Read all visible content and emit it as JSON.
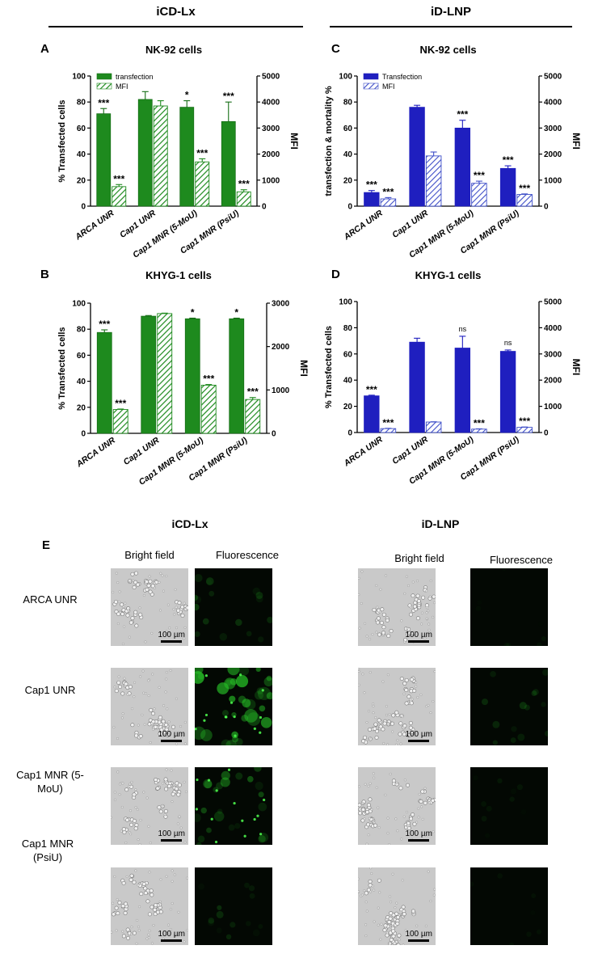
{
  "headers": {
    "left": "iCD-Lx",
    "right": "iD-LNP"
  },
  "colors": {
    "green_fill": "#1e8a1e",
    "green_stroke": "#176e17",
    "blue_fill": "#1f1fbf",
    "blue_hatch": "#3f4fc8",
    "panel_bg": "#ffffff"
  },
  "chart_data": [
    {
      "id": "A",
      "type": "bar",
      "title": "NK-92 cells",
      "theme": "green",
      "categories": [
        "ARCA UNR",
        "Cap1 UNR",
        "Cap1 MNR (5-MoU)",
        "Cap1 MNR (PsiU)"
      ],
      "ylabel": "% Transfected cells",
      "y2label": "MFI",
      "ylim": [
        0,
        100
      ],
      "y2lim": [
        0,
        5000
      ],
      "yticks": [
        "0",
        "20",
        "40",
        "60",
        "80",
        "100"
      ],
      "y2ticks": [
        "0",
        "1000",
        "2000",
        "3000",
        "4000",
        "5000"
      ],
      "legend_position": "top-left",
      "series": [
        {
          "name": "transfection",
          "style": "solid",
          "axis": "left",
          "values": [
            71,
            82,
            76,
            65
          ],
          "errors": [
            4,
            6,
            5,
            15
          ],
          "labels": [
            "***",
            "",
            "*",
            "***"
          ]
        },
        {
          "name": "MFI",
          "style": "hatch",
          "axis": "right",
          "values": [
            750,
            3850,
            1700,
            550
          ],
          "errors": [
            80,
            200,
            120,
            80
          ],
          "labels": [
            "***",
            "",
            "***",
            "***"
          ]
        }
      ]
    },
    {
      "id": "B",
      "type": "bar",
      "title": "KHYG-1 cells",
      "theme": "green",
      "categories": [
        "ARCA UNR",
        "Cap1 UNR",
        "Cap1 MNR (5-MoU)",
        "Cap1 MNR (PsiU)"
      ],
      "ylabel": "% Transfected cells",
      "y2label": "MFI",
      "ylim": [
        0,
        100
      ],
      "y2lim": [
        0,
        3000
      ],
      "yticks": [
        "0",
        "20",
        "40",
        "60",
        "80",
        "100"
      ],
      "y2ticks": [
        "0",
        "1000",
        "2000",
        "3000"
      ],
      "legend_position": "none",
      "series": [
        {
          "name": "transfection",
          "style": "solid",
          "axis": "left",
          "values": [
            77.5,
            90,
            88,
            88
          ],
          "errors": [
            2,
            0.5,
            0.5,
            0.5
          ],
          "labels": [
            "***",
            "",
            "*",
            "*"
          ]
        },
        {
          "name": "MFI",
          "style": "hatch",
          "axis": "right",
          "values": [
            550,
            2760,
            1110,
            780
          ],
          "errors": [
            10,
            10,
            15,
            45
          ],
          "labels": [
            "***",
            "",
            "***",
            "***"
          ]
        }
      ]
    },
    {
      "id": "C",
      "type": "bar",
      "title": "NK-92 cells",
      "theme": "blue",
      "categories": [
        "ARCA UNR",
        "Cap1 UNR",
        "Cap1 MNR (5-MoU)",
        "Cap1 MNR (PsiU)"
      ],
      "ylabel": "transfection & mortality %",
      "y2label": "MFI",
      "ylim": [
        0,
        100
      ],
      "y2lim": [
        0,
        5000
      ],
      "yticks": [
        "0",
        "20",
        "40",
        "60",
        "80",
        "100"
      ],
      "y2ticks": [
        "0",
        "1000",
        "2000",
        "3000",
        "4000",
        "5000"
      ],
      "legend_position": "top-left",
      "series": [
        {
          "name": "Transfection",
          "style": "solid",
          "axis": "left",
          "values": [
            10.5,
            76,
            60,
            29
          ],
          "errors": [
            1.5,
            1.5,
            6,
            2
          ],
          "labels": [
            "***",
            "",
            "***",
            "***"
          ]
        },
        {
          "name": "MFI",
          "style": "hatch",
          "axis": "right",
          "values": [
            280,
            1930,
            880,
            450
          ],
          "errors": [
            50,
            150,
            80,
            20
          ],
          "labels": [
            "***",
            "",
            "***",
            "***"
          ]
        }
      ]
    },
    {
      "id": "D",
      "type": "bar",
      "title": "KHYG-1 cells",
      "theme": "blue",
      "categories": [
        "ARCA UNR",
        "Cap1 UNR",
        "Cap1 MNR (5-MoU)",
        "Cap1 MNR (PsiU)"
      ],
      "ylabel": "% Transfected cells",
      "y2label": "MFI",
      "ylim": [
        0,
        100
      ],
      "y2lim": [
        0,
        5000
      ],
      "yticks": [
        "0",
        "20",
        "40",
        "60",
        "80",
        "100"
      ],
      "y2ticks": [
        "0",
        "1000",
        "2000",
        "3000",
        "4000",
        "5000"
      ],
      "legend_position": "none",
      "series": [
        {
          "name": "Transfection",
          "style": "solid",
          "axis": "left",
          "values": [
            28,
            69,
            64.5,
            62
          ],
          "errors": [
            0.5,
            3,
            9,
            1
          ],
          "labels": [
            "***",
            "",
            "ns",
            "ns"
          ]
        },
        {
          "name": "MFI",
          "style": "hatch",
          "axis": "right",
          "values": [
            150,
            400,
            130,
            200
          ],
          "errors": [
            10,
            10,
            10,
            10
          ],
          "labels": [
            "***",
            "",
            "***",
            "***"
          ]
        }
      ]
    }
  ],
  "micrographs": {
    "panel_label": "E",
    "left_header": "iCD-Lx",
    "right_header": "iD-LNP",
    "column_headers": [
      "Bright field",
      "Fluorescence",
      "Bright field",
      "Fluorescence"
    ],
    "scale_text": "100 µm",
    "rows": [
      {
        "label": "ARCA UNR"
      },
      {
        "label": "Cap1 UNR"
      },
      {
        "label": "Cap1 MNR (5-MoU)"
      },
      {
        "label": "Cap1 MNR (PsiU)"
      }
    ]
  }
}
